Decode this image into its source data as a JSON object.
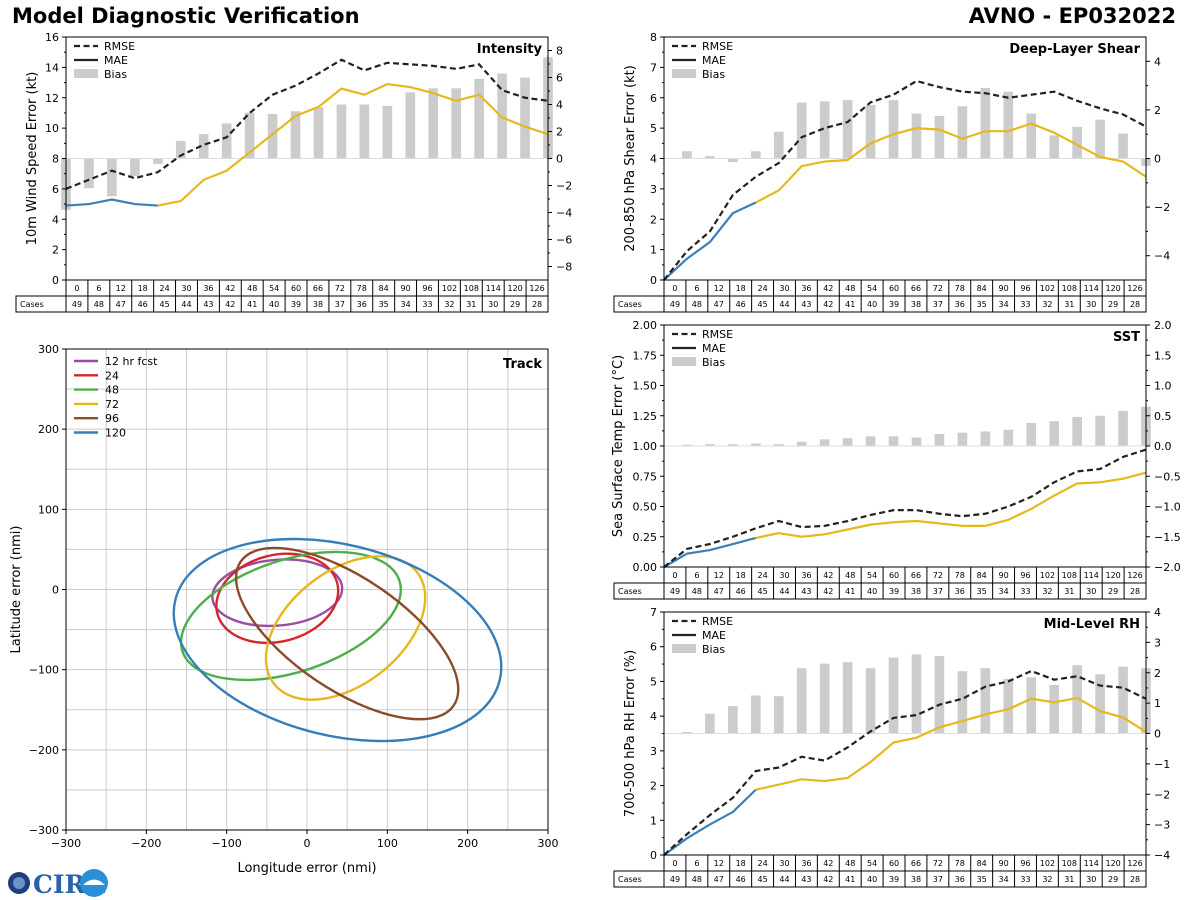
{
  "header": {
    "left_title": "Model Diagnostic Verification",
    "right_title": "AVNO - EP032022"
  },
  "logo": {
    "text": "CIRA"
  },
  "cases_label": "Cases",
  "chart_data": [
    {
      "id": "intensity",
      "type": "line+bar",
      "title": "Intensity",
      "ylabel": "10m Wind Speed Error (kt)",
      "x": [
        0,
        6,
        12,
        18,
        24,
        30,
        36,
        42,
        48,
        54,
        60,
        66,
        72,
        78,
        84,
        90,
        96,
        102,
        108,
        114,
        120,
        126
      ],
      "cases": [
        49,
        48,
        47,
        46,
        45,
        44,
        43,
        42,
        41,
        40,
        39,
        38,
        37,
        36,
        35,
        34,
        33,
        32,
        31,
        30,
        29,
        28
      ],
      "ylim": [
        0,
        16
      ],
      "yticks": [
        0,
        2,
        4,
        6,
        8,
        10,
        12,
        14,
        16
      ],
      "ylim_right": [
        -9,
        9
      ],
      "yticks_right": [
        -8,
        -6,
        -4,
        -2,
        0,
        2,
        4,
        6,
        8
      ],
      "legend": [
        "RMSE",
        "MAE",
        "Bias"
      ],
      "rmse": [
        6.0,
        6.6,
        7.2,
        6.7,
        7.1,
        8.2,
        8.9,
        9.4,
        11.0,
        12.2,
        12.8,
        13.6,
        14.5,
        13.8,
        14.3,
        14.2,
        14.1,
        13.9,
        14.2,
        12.5,
        12.0,
        11.8
      ],
      "mae": [
        4.9,
        5.0,
        5.3,
        5.0,
        4.9,
        5.2,
        6.6,
        7.2,
        8.4,
        9.6,
        10.8,
        11.4,
        12.6,
        12.2,
        12.9,
        12.7,
        12.3,
        11.8,
        12.2,
        10.7,
        10.1,
        9.6
      ],
      "bias": [
        -3.8,
        -2.2,
        -2.8,
        -1.3,
        -0.4,
        1.3,
        1.8,
        2.6,
        3.4,
        3.3,
        3.5,
        3.8,
        4.0,
        4.0,
        3.9,
        4.9,
        5.2,
        5.2,
        5.9,
        6.3,
        6.0,
        7.5
      ]
    },
    {
      "id": "shear",
      "type": "line+bar",
      "title": "Deep-Layer Shear",
      "ylabel": "200-850 hPa Shear Error (kt)",
      "x": [
        0,
        6,
        12,
        18,
        24,
        30,
        36,
        42,
        48,
        54,
        60,
        66,
        72,
        78,
        84,
        90,
        96,
        102,
        108,
        114,
        120,
        126
      ],
      "cases": [
        49,
        48,
        47,
        46,
        45,
        44,
        43,
        42,
        41,
        40,
        39,
        38,
        37,
        36,
        35,
        34,
        33,
        32,
        31,
        30,
        29,
        28
      ],
      "ylim": [
        0,
        8
      ],
      "yticks": [
        0,
        1,
        2,
        3,
        4,
        5,
        6,
        7,
        8
      ],
      "ylim_right": [
        -5,
        5
      ],
      "yticks_right": [
        -4,
        -2,
        0,
        2,
        4
      ],
      "legend": [
        "RMSE",
        "MAE",
        "Bias"
      ],
      "rmse": [
        0.0,
        0.95,
        1.6,
        2.8,
        3.4,
        3.85,
        4.7,
        5.0,
        5.2,
        5.85,
        6.1,
        6.55,
        6.35,
        6.2,
        6.15,
        6.0,
        6.1,
        6.2,
        5.9,
        5.65,
        5.45,
        5.05
      ],
      "mae": [
        0.0,
        0.7,
        1.25,
        2.2,
        2.55,
        2.95,
        3.75,
        3.9,
        3.95,
        4.5,
        4.8,
        5.0,
        4.95,
        4.65,
        4.9,
        4.9,
        5.15,
        4.85,
        4.45,
        4.05,
        3.9,
        3.4
      ],
      "bias": [
        0.0,
        0.3,
        0.1,
        -0.15,
        0.3,
        1.1,
        2.3,
        2.35,
        2.4,
        2.2,
        2.4,
        1.85,
        1.75,
        2.15,
        2.9,
        2.75,
        1.85,
        0.95,
        1.3,
        1.6,
        1.03,
        -0.3
      ]
    },
    {
      "id": "sst",
      "type": "line+bar",
      "title": "SST",
      "ylabel": "Sea Surface Temp Error (°C)",
      "x": [
        0,
        6,
        12,
        18,
        24,
        30,
        36,
        42,
        48,
        54,
        60,
        66,
        72,
        78,
        84,
        90,
        96,
        102,
        108,
        114,
        120,
        126
      ],
      "cases": [
        49,
        48,
        47,
        46,
        45,
        44,
        43,
        42,
        41,
        40,
        39,
        38,
        37,
        36,
        35,
        34,
        33,
        32,
        31,
        30,
        29,
        28
      ],
      "ylim": [
        0,
        2
      ],
      "yticks": [
        0.0,
        0.25,
        0.5,
        0.75,
        1.0,
        1.25,
        1.5,
        1.75,
        2.0
      ],
      "ylim_right": [
        -2,
        2
      ],
      "yticks_right": [
        -2.0,
        -1.5,
        -1.0,
        -0.5,
        0.0,
        0.5,
        1.0,
        1.5,
        2.0
      ],
      "legend": [
        "RMSE",
        "MAE",
        "Bias"
      ],
      "rmse": [
        0.0,
        0.15,
        0.19,
        0.25,
        0.32,
        0.38,
        0.33,
        0.34,
        0.38,
        0.43,
        0.47,
        0.47,
        0.44,
        0.42,
        0.44,
        0.5,
        0.58,
        0.7,
        0.79,
        0.81,
        0.91,
        0.97
      ],
      "mae": [
        0.0,
        0.11,
        0.14,
        0.19,
        0.24,
        0.28,
        0.25,
        0.27,
        0.31,
        0.35,
        0.37,
        0.38,
        0.36,
        0.34,
        0.34,
        0.39,
        0.48,
        0.59,
        0.69,
        0.7,
        0.73,
        0.78
      ],
      "bias": [
        0.0,
        0.02,
        0.03,
        0.03,
        0.04,
        0.03,
        0.07,
        0.11,
        0.13,
        0.16,
        0.16,
        0.14,
        0.2,
        0.22,
        0.24,
        0.27,
        0.38,
        0.41,
        0.48,
        0.5,
        0.58,
        0.65
      ]
    },
    {
      "id": "rh",
      "type": "line+bar",
      "title": "Mid-Level RH",
      "ylabel": "700-500 hPa RH Error (%)",
      "x": [
        0,
        6,
        12,
        18,
        24,
        30,
        36,
        42,
        48,
        54,
        60,
        66,
        72,
        78,
        84,
        90,
        96,
        102,
        108,
        114,
        120,
        126
      ],
      "cases": [
        49,
        48,
        47,
        46,
        45,
        44,
        43,
        42,
        41,
        40,
        39,
        38,
        37,
        36,
        35,
        34,
        33,
        32,
        31,
        30,
        29,
        28
      ],
      "ylim": [
        0,
        7
      ],
      "yticks": [
        0,
        1,
        2,
        3,
        4,
        5,
        6,
        7
      ],
      "ylim_right": [
        -4,
        4
      ],
      "yticks_right": [
        -4,
        -3,
        -2,
        -1,
        0,
        1,
        2,
        3,
        4
      ],
      "legend": [
        "RMSE",
        "MAE",
        "Bias"
      ],
      "rmse": [
        0.0,
        0.6,
        1.15,
        1.65,
        2.42,
        2.52,
        2.83,
        2.72,
        3.1,
        3.56,
        3.95,
        4.03,
        4.33,
        4.5,
        4.85,
        5.0,
        5.3,
        5.05,
        5.15,
        4.88,
        4.82,
        4.5
      ],
      "mae": [
        0.0,
        0.48,
        0.88,
        1.24,
        1.88,
        2.03,
        2.18,
        2.13,
        2.22,
        2.68,
        3.24,
        3.38,
        3.68,
        3.86,
        4.05,
        4.2,
        4.5,
        4.4,
        4.52,
        4.15,
        3.96,
        3.55
      ],
      "bias": [
        0.0,
        0.05,
        0.65,
        0.9,
        1.25,
        1.23,
        2.15,
        2.3,
        2.35,
        2.15,
        2.5,
        2.6,
        2.55,
        2.05,
        2.15,
        1.8,
        1.85,
        1.6,
        2.25,
        1.95,
        2.2,
        2.15
      ]
    },
    {
      "id": "track",
      "type": "ellipse",
      "title": "Track",
      "xlabel": "Longitude error (nmi)",
      "ylabel": "Latitude error (nmi)",
      "xlim": [
        -300,
        300
      ],
      "ylim": [
        -300,
        300
      ],
      "xticks": [
        -300,
        -200,
        -100,
        0,
        100,
        200,
        300
      ],
      "yticks": [
        -300,
        -200,
        -100,
        0,
        100,
        200,
        300
      ],
      "series": [
        {
          "name": "12 hr fcst",
          "color": "#984ea3",
          "cx": -37,
          "cy": -4,
          "rx": 81,
          "ry": 41,
          "angle": 5
        },
        {
          "name": "24",
          "color": "#d62728",
          "cx": -37,
          "cy": -11,
          "rx": 77,
          "ry": 54,
          "angle": 14
        },
        {
          "name": "48",
          "color": "#4daf4a",
          "cx": -20,
          "cy": -33,
          "rx": 142,
          "ry": 70,
          "angle": 18
        },
        {
          "name": "72",
          "color": "#e6b81e",
          "cx": 48,
          "cy": -48,
          "rx": 113,
          "ry": 71,
          "angle": 38
        },
        {
          "name": "96",
          "color": "#8b4a2b",
          "cx": 50,
          "cy": -55,
          "rx": 160,
          "ry": 70,
          "angle": -34
        },
        {
          "name": "120",
          "color": "#377eb8",
          "cx": 38,
          "cy": -63,
          "rx": 208,
          "ry": 119,
          "angle": -14
        }
      ]
    }
  ]
}
